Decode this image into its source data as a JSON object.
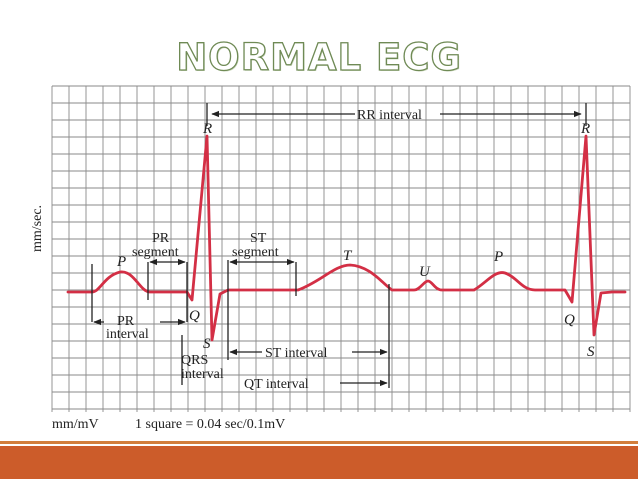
{
  "title": "NORMAL ECG",
  "axis": {
    "y_label": "mm/sec.",
    "x_label": "mm/mV",
    "scale_note": "1 square = 0.04 sec/0.1mV"
  },
  "waves": {
    "P1": "P",
    "R1": "R",
    "Q1": "Q",
    "S1": "S",
    "T": "T",
    "U": "U",
    "P2": "P",
    "R2": "R",
    "Q2": "Q",
    "S2": "S"
  },
  "intervals": {
    "rr": "RR interval",
    "pr_segment_1": "PR",
    "pr_segment_2": "segment",
    "st_segment_1": "ST",
    "st_segment_2": "segment",
    "pr_interval_1": "PR",
    "pr_interval_2": "interval",
    "qrs_interval_1": "QRS",
    "qrs_interval_2": "interval",
    "st_interval": "ST interval",
    "qt_interval": "QT interval"
  },
  "colors": {
    "trace": "#d32f45",
    "grid": "#8a8a8a",
    "title_outline": "#6f8a55",
    "footer": "#cc5c2a"
  }
}
